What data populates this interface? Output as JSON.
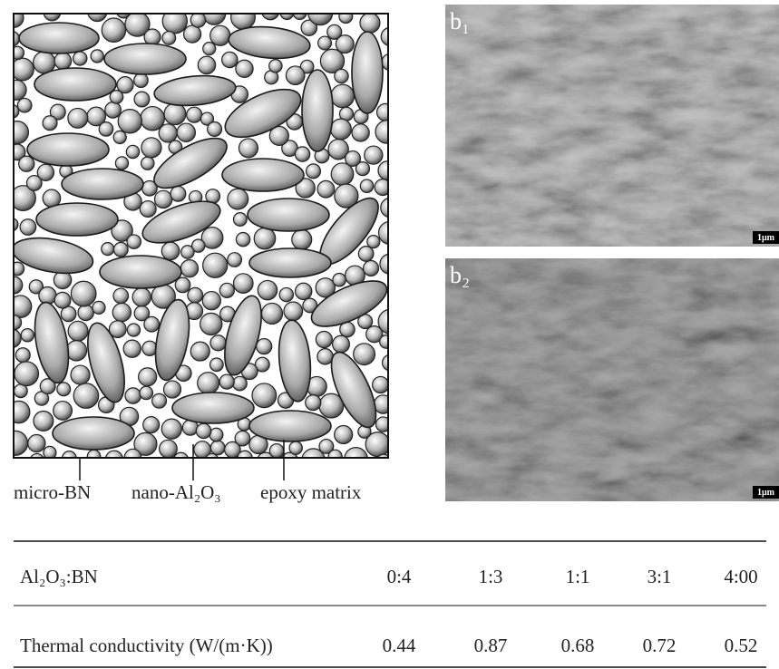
{
  "schematic": {
    "labels": [
      "micro-BN",
      "nano-Al₂O₃",
      "epoxy matrix"
    ]
  },
  "images": [
    {
      "label": "b₁",
      "scale": "1μm"
    },
    {
      "label": "b₂",
      "scale": "1μm"
    }
  ],
  "table": {
    "header": [
      "Al₂O₃:BN",
      "0:4",
      "1:3",
      "1:1",
      "3:1",
      "4:00"
    ],
    "rows": [
      [
        "Thermal conductivity (W/(m·K))",
        "0.44",
        "0.87",
        "0.68",
        "0.72",
        "0.52"
      ]
    ]
  }
}
